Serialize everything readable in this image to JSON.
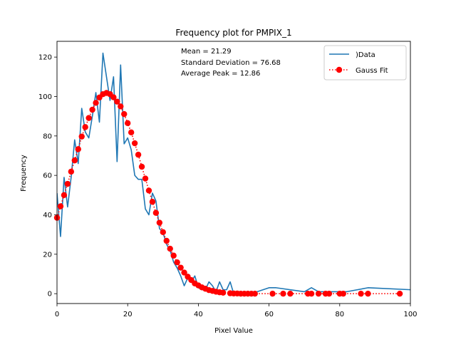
{
  "chart_data": {
    "type": "line",
    "title": "Frequency plot for PMPIX_1",
    "xlabel": "Pixel Value",
    "ylabel": "Frequency",
    "xlim": [
      0,
      100
    ],
    "ylim": [
      -5,
      128
    ],
    "xticks": [
      0,
      20,
      40,
      60,
      80,
      100
    ],
    "yticks": [
      0,
      20,
      40,
      60,
      80,
      100,
      120
    ],
    "grid": false,
    "legend_position": "top-right",
    "annotations": [
      "Mean = 21.29",
      "Standard Deviation = 76.68",
      "Average Peak = 12.86"
    ],
    "series": [
      {
        "name": ")Data",
        "style": "solid-line",
        "color": "#1f77b4",
        "x": [
          0,
          1,
          2,
          3,
          4,
          5,
          6,
          7,
          8,
          9,
          10,
          11,
          12,
          13,
          14,
          15,
          16,
          17,
          18,
          19,
          20,
          21,
          22,
          23,
          24,
          25,
          26,
          27,
          28,
          29,
          30,
          31,
          32,
          33,
          34,
          35,
          36,
          37,
          38,
          39,
          40,
          41,
          42,
          43,
          44,
          45,
          46,
          47,
          48,
          49,
          50,
          55,
          60,
          62,
          70,
          72,
          74,
          80,
          82,
          88,
          100
        ],
        "y": [
          51,
          29,
          59,
          44,
          59,
          78,
          66,
          94,
          82,
          79,
          90,
          102,
          87,
          122,
          110,
          98,
          110,
          67,
          116,
          76,
          79,
          73,
          60,
          58,
          58,
          43,
          40,
          51,
          47,
          33,
          31,
          25,
          22,
          16,
          13,
          9,
          4,
          8,
          6,
          9,
          3,
          2,
          2,
          6,
          4,
          1,
          6,
          2,
          2,
          6,
          0,
          0,
          3,
          3,
          1,
          3,
          1,
          1,
          1,
          3,
          2
        ]
      },
      {
        "name": "Gauss Fit",
        "style": "dotted-line-with-circles",
        "color": "#ff0000",
        "x": [
          0,
          1,
          2,
          3,
          4,
          5,
          6,
          7,
          8,
          9,
          10,
          11,
          12,
          13,
          14,
          15,
          16,
          17,
          18,
          19,
          20,
          21,
          22,
          23,
          24,
          25,
          26,
          27,
          28,
          29,
          30,
          31,
          32,
          33,
          34,
          35,
          36,
          37,
          38,
          39,
          40,
          41,
          42,
          43,
          44,
          45,
          46,
          47,
          49,
          50,
          51,
          52,
          53,
          54,
          55,
          56,
          61,
          64,
          66,
          71,
          72,
          74,
          76,
          77,
          80,
          81,
          86,
          88,
          97
        ],
        "y": [
          38.5,
          44.3,
          50.0,
          55.7,
          61.9,
          67.6,
          73.3,
          79.7,
          84.5,
          89.1,
          93.3,
          96.8,
          99.5,
          101.2,
          101.8,
          101.2,
          99.6,
          97.4,
          95.0,
          91.1,
          86.5,
          81.8,
          76.3,
          70.5,
          64.4,
          58.4,
          52.3,
          46.6,
          41.0,
          36.0,
          31.2,
          26.8,
          22.8,
          19.3,
          15.9,
          13.2,
          10.7,
          8.6,
          6.9,
          5.2,
          4.2,
          3.2,
          2.5,
          1.8,
          1.4,
          1.0,
          0.7,
          0.5,
          0.2,
          0.1,
          0.1,
          0,
          0,
          0,
          0,
          0,
          0,
          0,
          0,
          0,
          0,
          0,
          0,
          0,
          0,
          0,
          0,
          0,
          0
        ]
      }
    ]
  }
}
